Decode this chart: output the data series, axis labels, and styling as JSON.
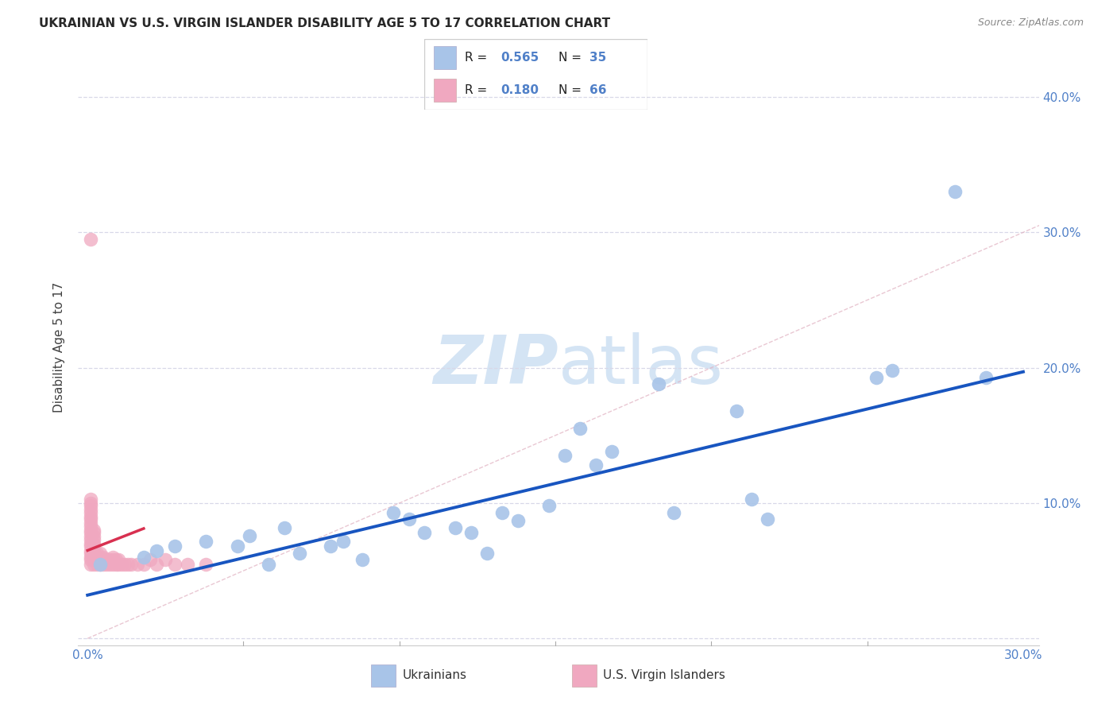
{
  "title": "UKRAINIAN VS U.S. VIRGIN ISLANDER DISABILITY AGE 5 TO 17 CORRELATION CHART",
  "source": "Source: ZipAtlas.com",
  "ylabel": "Disability Age 5 to 17",
  "xlim": [
    -0.003,
    0.305
  ],
  "ylim": [
    -0.005,
    0.435
  ],
  "xticks": [
    0.0,
    0.05,
    0.1,
    0.15,
    0.2,
    0.25,
    0.3
  ],
  "yticks": [
    0.0,
    0.1,
    0.2,
    0.3,
    0.4
  ],
  "blue_color": "#a8c4e8",
  "pink_color": "#f0a8c0",
  "blue_line_color": "#1855c0",
  "pink_line_color": "#d83050",
  "ref_line_color": "#c8c8d8",
  "grid_color": "#d8d8e8",
  "title_color": "#282828",
  "tick_color": "#5080c8",
  "watermark_color": "#d4e4f4",
  "blue_intercept": 0.032,
  "blue_slope": 0.55,
  "pink_intercept": 0.065,
  "pink_slope": 0.9,
  "pink_line_xmax": 0.018,
  "blue_dots_x": [
    0.004,
    0.018,
    0.022,
    0.028,
    0.038,
    0.048,
    0.052,
    0.058,
    0.063,
    0.068,
    0.078,
    0.082,
    0.088,
    0.098,
    0.103,
    0.108,
    0.118,
    0.123,
    0.128,
    0.133,
    0.138,
    0.148,
    0.153,
    0.158,
    0.163,
    0.168,
    0.183,
    0.188,
    0.208,
    0.213,
    0.218,
    0.253,
    0.258,
    0.278,
    0.288
  ],
  "blue_dots_y": [
    0.055,
    0.06,
    0.065,
    0.068,
    0.072,
    0.068,
    0.076,
    0.055,
    0.082,
    0.063,
    0.068,
    0.072,
    0.058,
    0.093,
    0.088,
    0.078,
    0.082,
    0.078,
    0.063,
    0.093,
    0.087,
    0.098,
    0.135,
    0.155,
    0.128,
    0.138,
    0.188,
    0.093,
    0.168,
    0.103,
    0.088,
    0.193,
    0.198,
    0.33,
    0.193
  ],
  "pink_dots_x": [
    0.001,
    0.001,
    0.001,
    0.001,
    0.001,
    0.001,
    0.001,
    0.001,
    0.001,
    0.001,
    0.001,
    0.001,
    0.001,
    0.001,
    0.001,
    0.001,
    0.001,
    0.001,
    0.001,
    0.001,
    0.002,
    0.002,
    0.002,
    0.002,
    0.002,
    0.002,
    0.002,
    0.002,
    0.002,
    0.002,
    0.002,
    0.003,
    0.003,
    0.003,
    0.003,
    0.004,
    0.004,
    0.004,
    0.004,
    0.005,
    0.005,
    0.005,
    0.006,
    0.006,
    0.007,
    0.007,
    0.008,
    0.008,
    0.008,
    0.009,
    0.009,
    0.01,
    0.01,
    0.011,
    0.012,
    0.013,
    0.014,
    0.016,
    0.018,
    0.02,
    0.022,
    0.025,
    0.028,
    0.032,
    0.038,
    0.001
  ],
  "pink_dots_y": [
    0.055,
    0.058,
    0.06,
    0.063,
    0.065,
    0.068,
    0.07,
    0.073,
    0.075,
    0.078,
    0.08,
    0.083,
    0.085,
    0.088,
    0.09,
    0.093,
    0.095,
    0.098,
    0.1,
    0.103,
    0.055,
    0.058,
    0.06,
    0.063,
    0.065,
    0.068,
    0.07,
    0.073,
    0.075,
    0.078,
    0.08,
    0.055,
    0.058,
    0.06,
    0.063,
    0.055,
    0.058,
    0.06,
    0.063,
    0.055,
    0.058,
    0.06,
    0.055,
    0.058,
    0.055,
    0.058,
    0.055,
    0.058,
    0.06,
    0.055,
    0.058,
    0.055,
    0.058,
    0.055,
    0.055,
    0.055,
    0.055,
    0.055,
    0.055,
    0.058,
    0.055,
    0.058,
    0.055,
    0.055,
    0.055,
    0.295
  ]
}
